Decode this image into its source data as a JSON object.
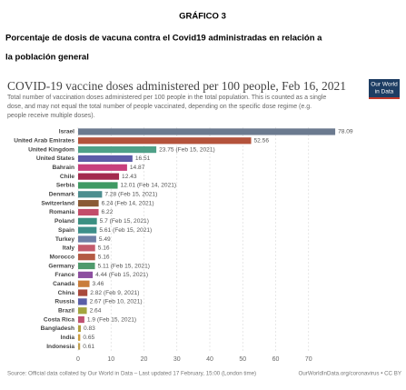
{
  "header": {
    "label": "GRÁFICO 3",
    "caption": [
      "Porcentaje de dosis de vacuna contra el Covid19 administradas en relación a",
      "la población general"
    ]
  },
  "chart_data": {
    "type": "barh",
    "title": "COVID-19 vaccine doses administered per 100 people, Feb 16, 2021",
    "subtitle": [
      "Total number of vaccination doses administered per 100 people in the total population. This is counted as a single",
      "dose, and may not equal the total number of people vaccinated, depending on the specific dose regime (e.g.",
      "people receive multiple doses)."
    ],
    "logo": [
      "Our World",
      "in Data"
    ],
    "categories": [
      "Israel",
      "United Arab Emirates",
      "United Kingdom",
      "United States",
      "Bahrain",
      "Chile",
      "Serbia",
      "Denmark",
      "Switzerland",
      "Romania",
      "Poland",
      "Spain",
      "Turkey",
      "Italy",
      "Morocco",
      "Germany",
      "France",
      "Canada",
      "China",
      "Russia",
      "Brazil",
      "Costa Rica",
      "Bangladesh",
      "India",
      "Indonesia"
    ],
    "values": [
      78.09,
      52.56,
      23.75,
      16.51,
      14.87,
      12.43,
      12.01,
      7.28,
      6.24,
      6.22,
      5.7,
      5.61,
      5.49,
      5.16,
      5.16,
      5.11,
      4.44,
      3.46,
      2.82,
      2.67,
      2.64,
      1.9,
      0.83,
      0.65,
      0.61
    ],
    "value_labels": [
      "78.09",
      "52.56",
      "23.75 (Feb 15, 2021)",
      "16.51",
      "14.87",
      "12.43",
      "12.01 (Feb 14, 2021)",
      "7.28 (Feb 15, 2021)",
      "6.24 (Feb 14, 2021)",
      "6.22",
      "5.7 (Feb 15, 2021)",
      "5.61 (Feb 15, 2021)",
      "5.49",
      "5.16",
      "5.16",
      "5.11 (Feb 15, 2021)",
      "4.44 (Feb 15, 2021)",
      "3.46",
      "2.82 (Feb 9, 2021)",
      "2.67 (Feb 10, 2021)",
      "2.64",
      "1.9 (Feb 15, 2021)",
      "0.83",
      "0.65",
      "0.61"
    ],
    "colors": [
      "#6b7a8f",
      "#b4533c",
      "#4fa188",
      "#5d5ca8",
      "#c83f7c",
      "#a32a4e",
      "#3f9a63",
      "#4c8d8f",
      "#8a5a35",
      "#c24d6a",
      "#3b9082",
      "#3e8f8a",
      "#6f7fa7",
      "#c45a6c",
      "#b35a43",
      "#4f9a6c",
      "#8d4fa0",
      "#c97d3c",
      "#a8493c",
      "#5a5fa8",
      "#a3a63f",
      "#c05272",
      "#b4a040",
      "#cf9d3c",
      "#c0a050"
    ],
    "xlim": [
      0,
      80
    ],
    "xticks": [
      0,
      10,
      20,
      30,
      40,
      50,
      60,
      70
    ],
    "grid": true,
    "source": "Source: Official data collated by Our World in Data – Last updated 17 February, 15:00 (London time)",
    "url": "OurWorldInData.org/coronavirus • CC BY"
  }
}
